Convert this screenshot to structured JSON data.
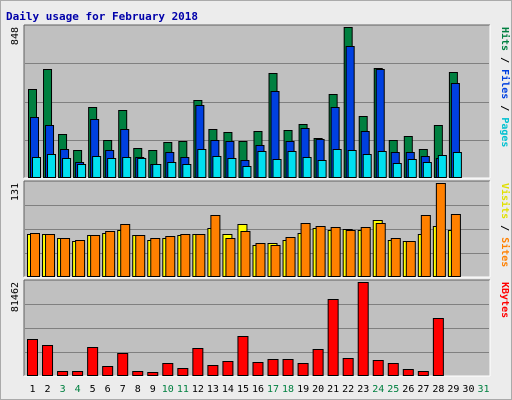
{
  "title": "Daily usage for February 2018",
  "colors": {
    "pages": "#00e0f0",
    "files": "#0040e0",
    "hits": "#008040",
    "sites": "#ff8000",
    "visits": "#ffff00",
    "kbytes": "#ff0000",
    "panel_bg": "#c0c0c0",
    "weekend_label": "#008040",
    "weekday_label": "#000000"
  },
  "legends": {
    "top": [
      {
        "text": "Pages",
        "color": "#00c0d0"
      },
      {
        "text": "Files",
        "color": "#0040e0"
      },
      {
        "text": "Hits",
        "color": "#008040"
      }
    ],
    "mid": [
      {
        "text": "Sites",
        "color": "#ff8000"
      },
      {
        "text": "Visits",
        "color": "#e0e000"
      }
    ],
    "bottom": [
      {
        "text": "KBytes",
        "color": "#ff0000"
      }
    ]
  },
  "chart_data": {
    "type": "bar",
    "days": [
      "1",
      "2",
      "3",
      "4",
      "5",
      "6",
      "7",
      "8",
      "9",
      "10",
      "11",
      "12",
      "13",
      "14",
      "15",
      "16",
      "17",
      "18",
      "19",
      "20",
      "21",
      "22",
      "23",
      "24",
      "25",
      "26",
      "27",
      "28",
      "29",
      "30",
      "31"
    ],
    "weekend_days": [
      "3",
      "4",
      "10",
      "11",
      "17",
      "18",
      "24",
      "25",
      "31"
    ],
    "top_panel": {
      "ymax_label": "848",
      "ymax": 848,
      "series": [
        {
          "name": "Hits",
          "values": [
            500,
            610,
            245,
            155,
            400,
            215,
            380,
            170,
            155,
            200,
            210,
            440,
            275,
            260,
            210,
            265,
            590,
            270,
            305,
            225,
            470,
            848,
            350,
            620,
            215,
            235,
            165,
            300,
            595,
            0,
            0
          ]
        },
        {
          "name": "Files",
          "values": [
            345,
            295,
            165,
            90,
            330,
            155,
            275,
            120,
            80,
            145,
            120,
            410,
            215,
            205,
            100,
            185,
            490,
            210,
            280,
            220,
            400,
            740,
            265,
            610,
            145,
            145,
            125,
            110,
            535,
            0,
            0
          ]
        },
        {
          "name": "Pages",
          "values": [
            120,
            135,
            115,
            80,
            125,
            115,
            120,
            110,
            80,
            90,
            80,
            165,
            125,
            115,
            70,
            150,
            105,
            150,
            120,
            100,
            165,
            160,
            135,
            150,
            85,
            105,
            90,
            130,
            145,
            0,
            0
          ]
        }
      ]
    },
    "mid_panel": {
      "ymax_label": "131",
      "ymax": 131,
      "series": [
        {
          "name": "Visits",
          "values": [
            60,
            60,
            55,
            50,
            58,
            62,
            65,
            58,
            52,
            55,
            58,
            60,
            68,
            60,
            74,
            44,
            48,
            51,
            62,
            68,
            66,
            67,
            66,
            80,
            52,
            50,
            60,
            71,
            65,
            0,
            0
          ]
        },
        {
          "name": "Sites",
          "values": [
            61,
            60,
            55,
            52,
            58,
            64,
            74,
            58,
            55,
            57,
            60,
            60,
            86,
            55,
            64,
            48,
            45,
            56,
            75,
            71,
            69,
            66,
            70,
            75,
            54,
            50,
            86,
            131,
            88,
            0,
            0
          ]
        }
      ]
    },
    "bottom_panel": {
      "ymax_label": "81462",
      "ymax": 81462,
      "series": [
        {
          "name": "KBytes",
          "values": [
            32000,
            27000,
            4500,
            4000,
            25000,
            9000,
            20000,
            4000,
            3200,
            11000,
            6700,
            24000,
            9700,
            13000,
            35000,
            12000,
            15000,
            15000,
            11000,
            23000,
            67000,
            15500,
            81462,
            14000,
            11200,
            6200,
            4500,
            50000,
            0,
            0,
            0
          ]
        }
      ]
    }
  }
}
